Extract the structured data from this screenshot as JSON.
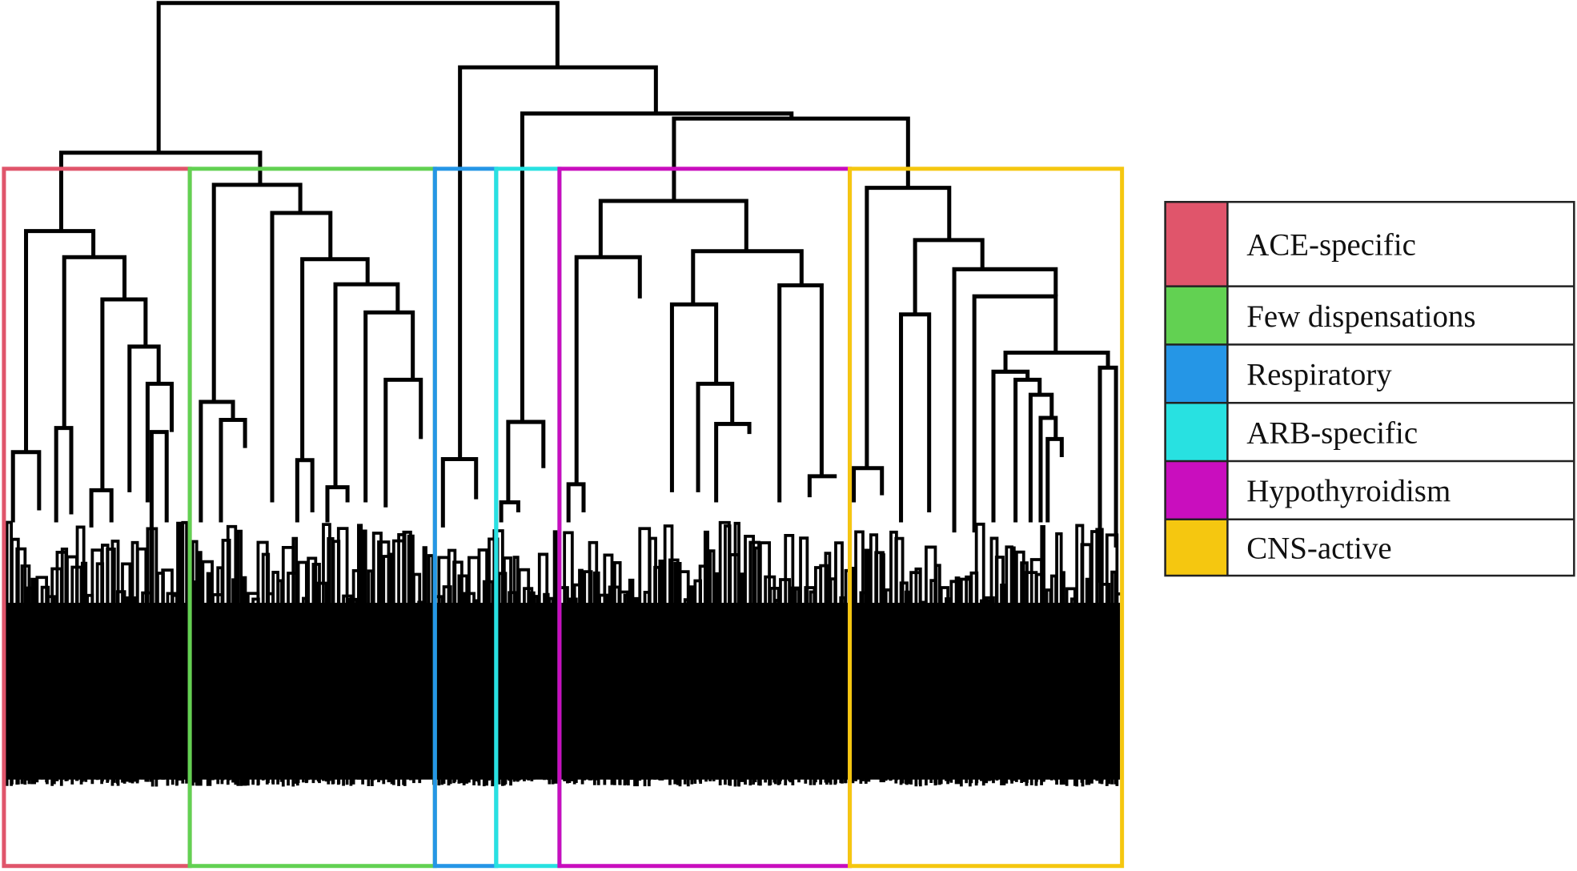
{
  "chart_data": {
    "type": "dendrogram",
    "line_color": "#000000",
    "clusters": [
      {
        "name": "ACE-specific",
        "color": "#e0556b"
      },
      {
        "name": "Few dispensations",
        "color": "#62d152"
      },
      {
        "name": "Respiratory",
        "color": "#2596e6"
      },
      {
        "name": "ARB-specific",
        "color": "#28e1e1"
      },
      {
        "name": "Hypothyroidism",
        "color": "#c90ebe"
      },
      {
        "name": "CNS-active",
        "color": "#f5c710"
      }
    ],
    "legend_position": "right"
  }
}
